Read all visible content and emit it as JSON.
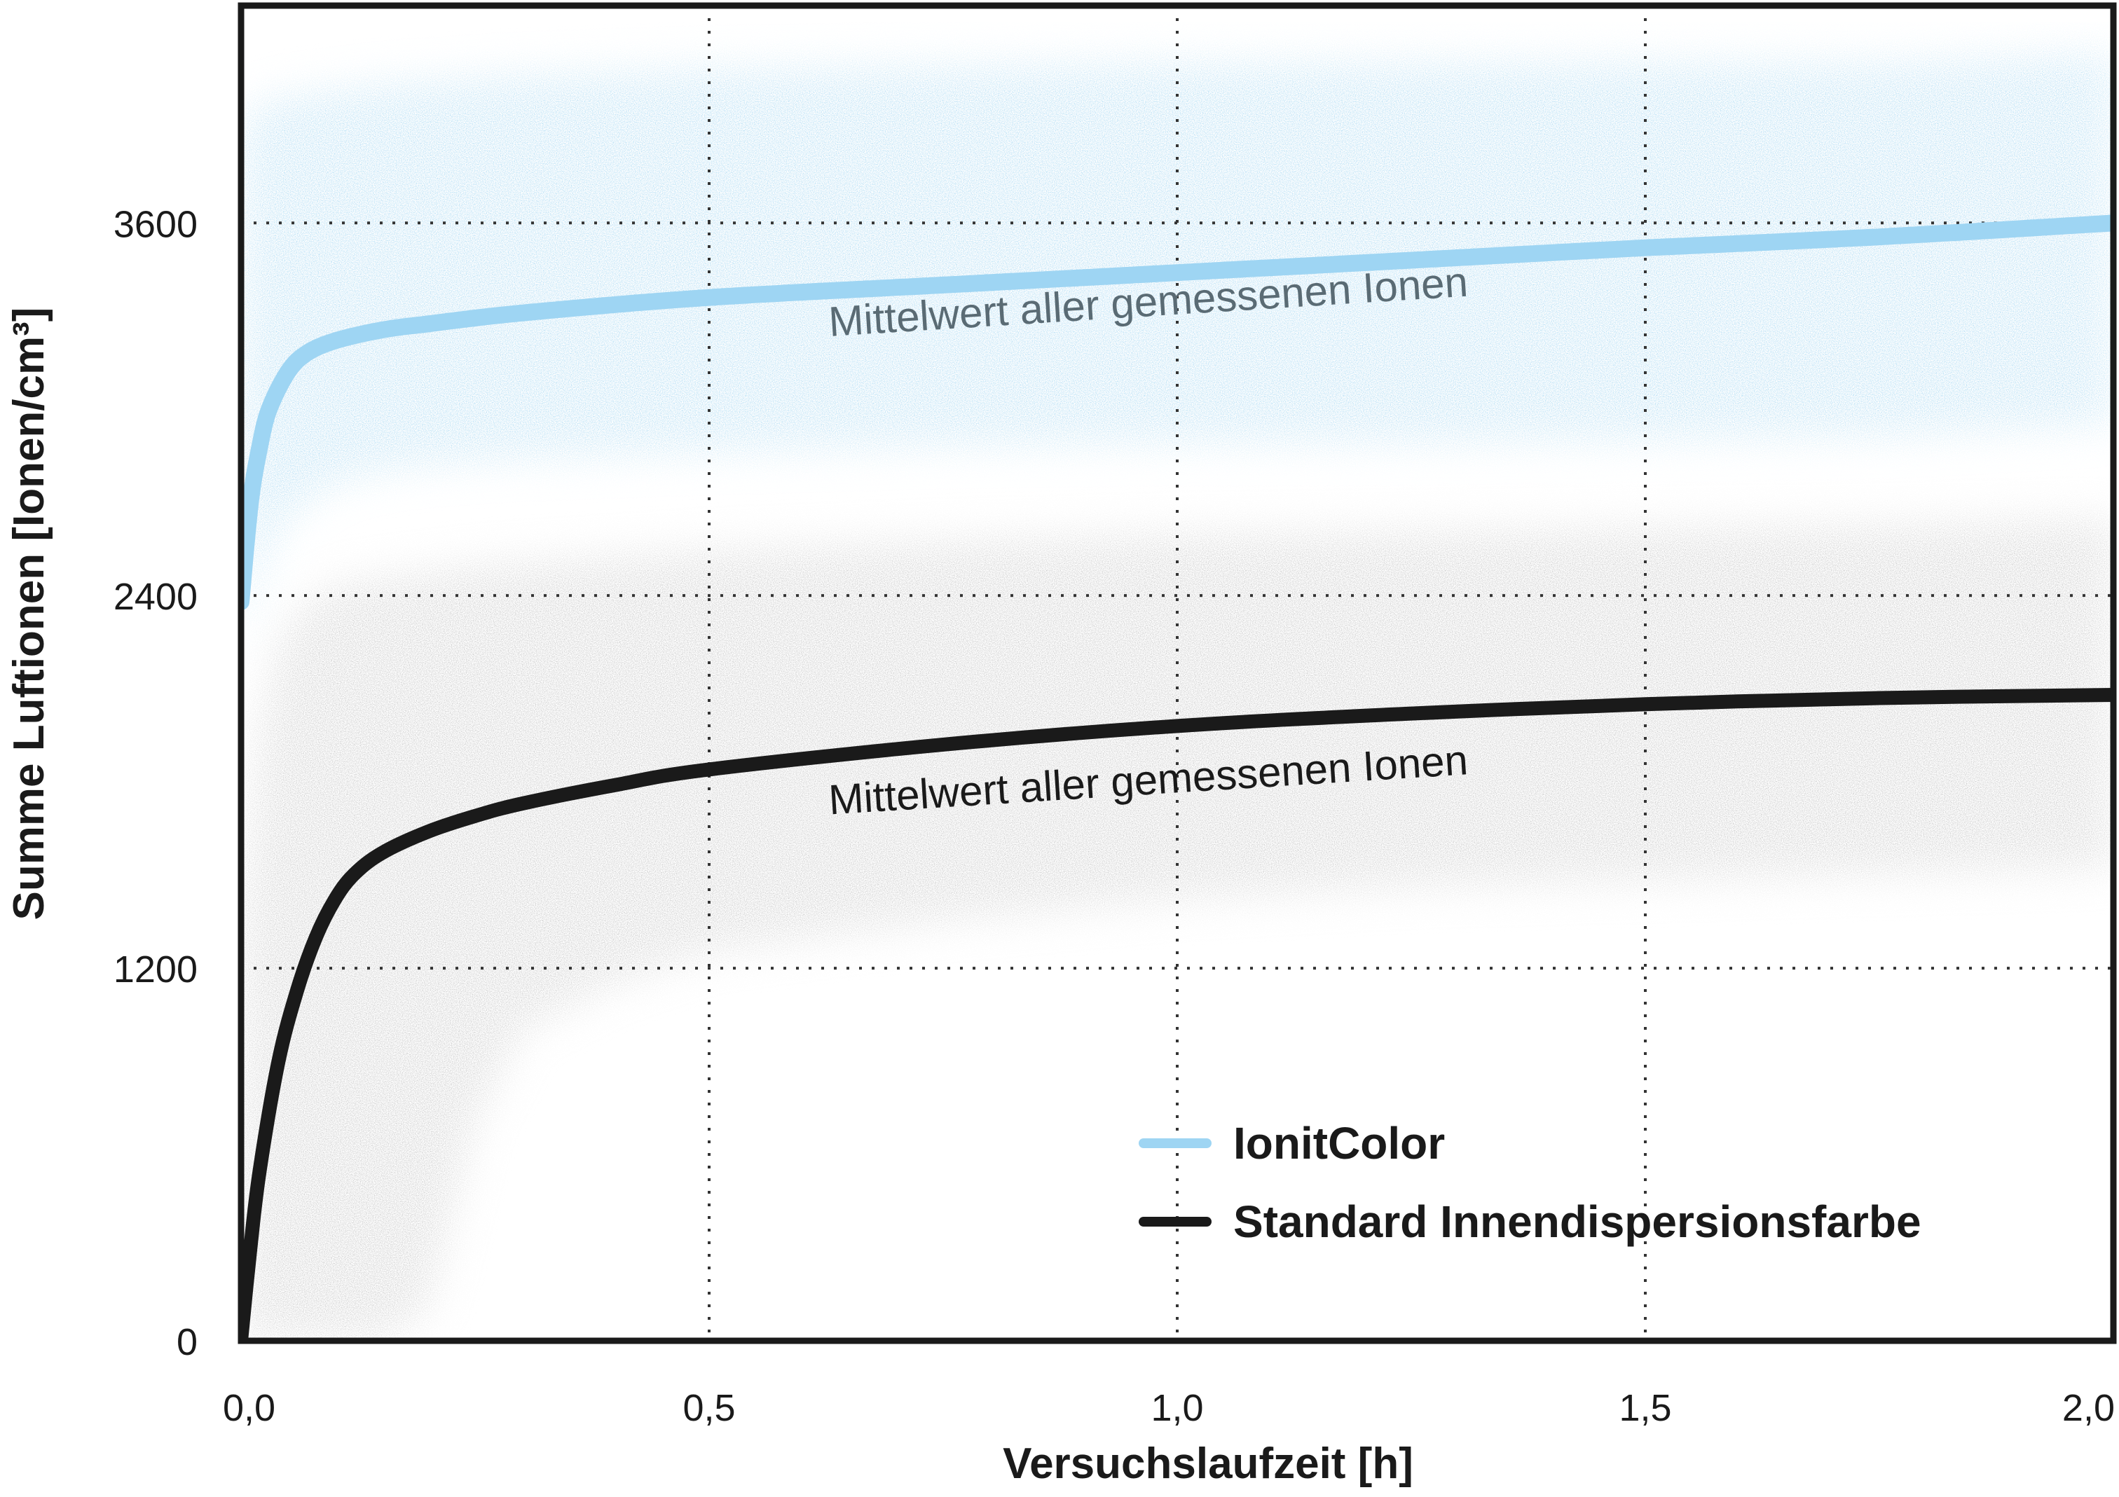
{
  "chart_data": {
    "type": "line",
    "title": "",
    "xlabel": "Versuchslaufzeit [h]",
    "ylabel": "Summe Luftionen [Ionen/cm³]",
    "xlim": [
      0,
      2.0
    ],
    "ylim": [
      0,
      4300
    ],
    "x_ticks": [
      0,
      0.5,
      1.0,
      1.5,
      2.0
    ],
    "x_tick_labels": [
      "0,0",
      "0,5",
      "1,0",
      "1,5",
      "2,0"
    ],
    "y_ticks": [
      0,
      1200,
      2400,
      3600
    ],
    "y_tick_labels": [
      "0",
      "1200",
      "2400",
      "3600"
    ],
    "grid": "dotted",
    "legend_position": "bottom-right",
    "series": [
      {
        "name": "IonitColor",
        "color": "#9ed5f3",
        "band_color": "#a9d9f3",
        "x": [
          0.0,
          0.01,
          0.02,
          0.03,
          0.05,
          0.07,
          0.1,
          0.15,
          0.2,
          0.3,
          0.5,
          0.75,
          1.0,
          1.25,
          1.5,
          1.75,
          2.0
        ],
        "values": [
          2380,
          2700,
          2880,
          3000,
          3120,
          3180,
          3220,
          3255,
          3275,
          3310,
          3360,
          3400,
          3440,
          3480,
          3520,
          3555,
          3600
        ],
        "band_low": [
          2250,
          2350,
          2450,
          2550,
          2650,
          2700,
          2760,
          2800,
          2820,
          2840,
          2860,
          2880,
          2890,
          2890,
          2900,
          2910,
          2950
        ],
        "band_high": [
          3900,
          3950,
          3980,
          4000,
          4010,
          4020,
          4030,
          4050,
          4060,
          4080,
          4100,
          4110,
          4120,
          4120,
          4120,
          4120,
          4150
        ],
        "annotation": {
          "text": "Mittelwert aller gemessenen Ionen",
          "x": 0.97,
          "y": 3300,
          "color": "#5a6b74"
        }
      },
      {
        "name": "Standard Innendispersionsfarbe",
        "color": "#1a1a1a",
        "band_color": "#c4c4c4",
        "x": [
          0.0,
          0.01,
          0.02,
          0.04,
          0.06,
          0.08,
          0.1,
          0.12,
          0.15,
          0.2,
          0.25,
          0.3,
          0.4,
          0.5,
          0.75,
          1.0,
          1.25,
          1.5,
          1.75,
          2.0
        ],
        "values": [
          0,
          300,
          550,
          900,
          1130,
          1300,
          1420,
          1500,
          1570,
          1640,
          1690,
          1730,
          1790,
          1840,
          1920,
          1980,
          2020,
          2050,
          2070,
          2080
        ],
        "band_low": [
          0,
          0,
          0,
          0,
          0,
          0,
          0,
          0,
          0,
          100,
          700,
          1000,
          1150,
          1250,
          1350,
          1420,
          1460,
          1480,
          1500,
          1520
        ],
        "band_high": [
          1300,
          1700,
          2000,
          2250,
          2350,
          2400,
          2430,
          2450,
          2460,
          2480,
          2500,
          2510,
          2530,
          2550,
          2580,
          2600,
          2610,
          2620,
          2630,
          2650
        ],
        "annotation": {
          "text": "Mittelwert aller gemessenen Ionen",
          "x": 0.97,
          "y": 1760,
          "color": "#1a1a1a"
        }
      }
    ],
    "legend": [
      {
        "label": "IonitColor",
        "color": "#9ed5f3"
      },
      {
        "label": "Standard Innendispersionsfarbe",
        "color": "#1a1a1a"
      }
    ]
  }
}
